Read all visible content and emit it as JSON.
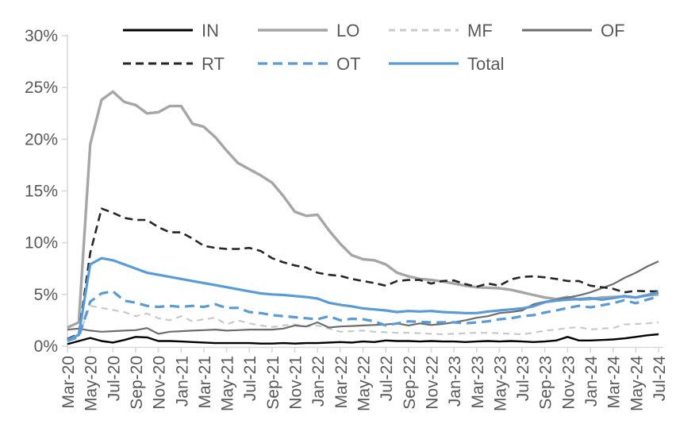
{
  "chart_data": {
    "type": "line",
    "title": "",
    "xlabel": "",
    "ylabel": "",
    "grid": false,
    "background": "#ffffff",
    "axis_color": "#d9d9d9",
    "text_color": "#595959",
    "x": [
      "Mar-20",
      "Apr-20",
      "May-20",
      "Jun-20",
      "Jul-20",
      "Aug-20",
      "Sep-20",
      "Oct-20",
      "Nov-20",
      "Dec-20",
      "Jan-21",
      "Feb-21",
      "Mar-21",
      "Apr-21",
      "May-21",
      "Jun-21",
      "Jul-21",
      "Aug-21",
      "Sep-21",
      "Oct-21",
      "Nov-21",
      "Dec-21",
      "Jan-22",
      "Feb-22",
      "Mar-22",
      "Apr-22",
      "May-22",
      "Jun-22",
      "Jul-22",
      "Aug-22",
      "Sep-22",
      "Oct-22",
      "Nov-22",
      "Dec-22",
      "Jan-23",
      "Feb-23",
      "Mar-23",
      "Apr-23",
      "May-23",
      "Jun-23",
      "Jul-23",
      "Aug-23",
      "Sep-23",
      "Oct-23",
      "Nov-23",
      "Dec-23",
      "Jan-24",
      "Feb-24",
      "Mar-24",
      "Apr-24",
      "May-24",
      "Jun-24",
      "Jul-24"
    ],
    "x_tick_labels": [
      "Mar-20",
      "May-20",
      "Jul-20",
      "Sep-20",
      "Nov-20",
      "Jan-21",
      "Mar-21",
      "May-21",
      "Jul-21",
      "Sep-21",
      "Nov-21",
      "Jan-22",
      "Mar-22",
      "May-22",
      "Jul-22",
      "Sep-22",
      "Nov-22",
      "Jan-23",
      "Mar-23",
      "May-23",
      "Jul-23",
      "Sep-23",
      "Nov-23",
      "Jan-24",
      "Mar-24",
      "May-24",
      "Jul-24"
    ],
    "y_axis": {
      "min": 0,
      "max": 30,
      "step": 5,
      "tick_labels": [
        "0%",
        "5%",
        "10%",
        "15%",
        "20%",
        "25%",
        "30%"
      ]
    },
    "legend": {
      "position": "top",
      "rows": [
        [
          "IN",
          "LO",
          "MF",
          "OF"
        ],
        [
          "RT",
          "OT",
          "Total"
        ]
      ]
    },
    "series": [
      {
        "name": "IN",
        "color": "#000000",
        "style": "solid",
        "width": 2.4,
        "values": [
          0.2,
          0.5,
          0.8,
          0.5,
          0.35,
          0.6,
          0.9,
          0.85,
          0.5,
          0.5,
          0.45,
          0.4,
          0.35,
          0.3,
          0.3,
          0.3,
          0.3,
          0.25,
          0.25,
          0.3,
          0.25,
          0.3,
          0.3,
          0.35,
          0.4,
          0.35,
          0.45,
          0.4,
          0.55,
          0.5,
          0.5,
          0.45,
          0.5,
          0.45,
          0.45,
          0.4,
          0.45,
          0.5,
          0.45,
          0.5,
          0.45,
          0.4,
          0.45,
          0.55,
          0.9,
          0.55,
          0.55,
          0.6,
          0.65,
          0.75,
          0.9,
          1.05,
          1.15
        ]
      },
      {
        "name": "LO",
        "color": "#a6a6a6",
        "style": "solid",
        "width": 3.4,
        "values": [
          1.8,
          2.3,
          19.5,
          23.8,
          24.6,
          23.6,
          23.3,
          22.5,
          22.6,
          23.2,
          23.2,
          21.5,
          21.2,
          20.2,
          18.9,
          17.7,
          17.1,
          16.5,
          15.8,
          14.5,
          13.0,
          12.6,
          12.7,
          11.2,
          9.9,
          8.8,
          8.4,
          8.3,
          7.9,
          7.1,
          6.75,
          6.5,
          6.4,
          6.25,
          6.05,
          5.85,
          5.7,
          5.65,
          5.6,
          5.45,
          5.2,
          4.95,
          4.7,
          4.55,
          4.75,
          4.5,
          4.55,
          4.7,
          4.75,
          4.8,
          4.7,
          4.9,
          5.0
        ]
      },
      {
        "name": "MF",
        "color": "#c9c9c9",
        "style": "dashed",
        "width": 2.2,
        "values": [
          0.6,
          1.0,
          3.9,
          3.7,
          3.5,
          3.3,
          2.9,
          3.15,
          2.7,
          2.5,
          2.9,
          2.4,
          2.6,
          2.75,
          2.1,
          2.5,
          2.2,
          2.0,
          1.85,
          2.0,
          2.1,
          1.9,
          2.0,
          1.7,
          1.4,
          1.45,
          1.5,
          1.4,
          1.35,
          1.3,
          1.3,
          1.25,
          1.2,
          1.15,
          1.2,
          1.25,
          1.3,
          1.3,
          1.25,
          1.2,
          1.15,
          1.3,
          1.5,
          1.6,
          1.75,
          1.85,
          1.6,
          1.7,
          1.75,
          2.1,
          2.15,
          2.2,
          2.3
        ]
      },
      {
        "name": "OF",
        "color": "#6d6d6d",
        "style": "solid",
        "width": 2.2,
        "values": [
          1.6,
          1.7,
          1.5,
          1.4,
          1.45,
          1.5,
          1.55,
          1.75,
          1.2,
          1.4,
          1.45,
          1.5,
          1.55,
          1.6,
          1.5,
          1.55,
          1.6,
          1.6,
          1.6,
          1.7,
          2.0,
          1.9,
          2.3,
          1.8,
          1.9,
          1.95,
          2.0,
          2.05,
          2.1,
          2.2,
          2.0,
          2.2,
          2.05,
          2.15,
          2.3,
          2.5,
          2.75,
          2.9,
          3.2,
          3.3,
          3.45,
          4.05,
          4.3,
          4.5,
          4.7,
          4.9,
          5.2,
          5.6,
          6.0,
          6.6,
          7.1,
          7.7,
          8.2
        ]
      },
      {
        "name": "RT",
        "color": "#262626",
        "style": "dashed",
        "width": 2.6,
        "values": [
          0.7,
          1.2,
          9.0,
          13.3,
          12.9,
          12.4,
          12.2,
          12.2,
          11.5,
          11.0,
          11.0,
          10.4,
          9.7,
          9.5,
          9.4,
          9.4,
          9.5,
          9.2,
          8.5,
          8.1,
          7.8,
          7.6,
          7.1,
          6.9,
          6.8,
          6.5,
          6.3,
          6.1,
          5.85,
          6.3,
          6.4,
          6.4,
          6.05,
          6.3,
          6.35,
          6.0,
          5.75,
          6.05,
          5.85,
          6.45,
          6.7,
          6.75,
          6.65,
          6.5,
          6.3,
          6.3,
          5.85,
          5.7,
          5.55,
          5.2,
          5.35,
          5.3,
          5.3
        ]
      },
      {
        "name": "OT",
        "color": "#5b9bd5",
        "style": "dashed",
        "width": 3.2,
        "values": [
          0.5,
          0.9,
          4.3,
          5.1,
          5.3,
          4.4,
          4.2,
          3.9,
          3.8,
          3.9,
          3.8,
          3.9,
          3.8,
          4.05,
          3.7,
          3.7,
          3.3,
          3.2,
          3.0,
          2.9,
          2.8,
          2.7,
          2.6,
          2.9,
          2.5,
          2.65,
          2.6,
          2.4,
          2.0,
          2.2,
          2.4,
          2.35,
          2.3,
          2.3,
          2.3,
          2.2,
          2.3,
          2.4,
          2.6,
          2.7,
          2.9,
          3.0,
          3.25,
          3.45,
          3.7,
          3.9,
          3.75,
          3.95,
          4.15,
          4.45,
          4.15,
          4.5,
          4.8
        ]
      },
      {
        "name": "Total",
        "color": "#5b9bd5",
        "style": "solid",
        "width": 3.2,
        "values": [
          0.6,
          1.1,
          7.9,
          8.5,
          8.3,
          7.9,
          7.5,
          7.1,
          6.9,
          6.7,
          6.5,
          6.3,
          6.1,
          5.9,
          5.7,
          5.5,
          5.3,
          5.1,
          5.0,
          4.95,
          4.85,
          4.75,
          4.6,
          4.2,
          4.0,
          3.85,
          3.65,
          3.55,
          3.45,
          3.3,
          3.4,
          3.35,
          3.4,
          3.3,
          3.25,
          3.2,
          3.2,
          3.35,
          3.45,
          3.55,
          3.65,
          3.85,
          4.25,
          4.4,
          4.5,
          4.55,
          4.65,
          4.5,
          4.65,
          4.85,
          4.7,
          4.95,
          5.2
        ]
      }
    ]
  }
}
